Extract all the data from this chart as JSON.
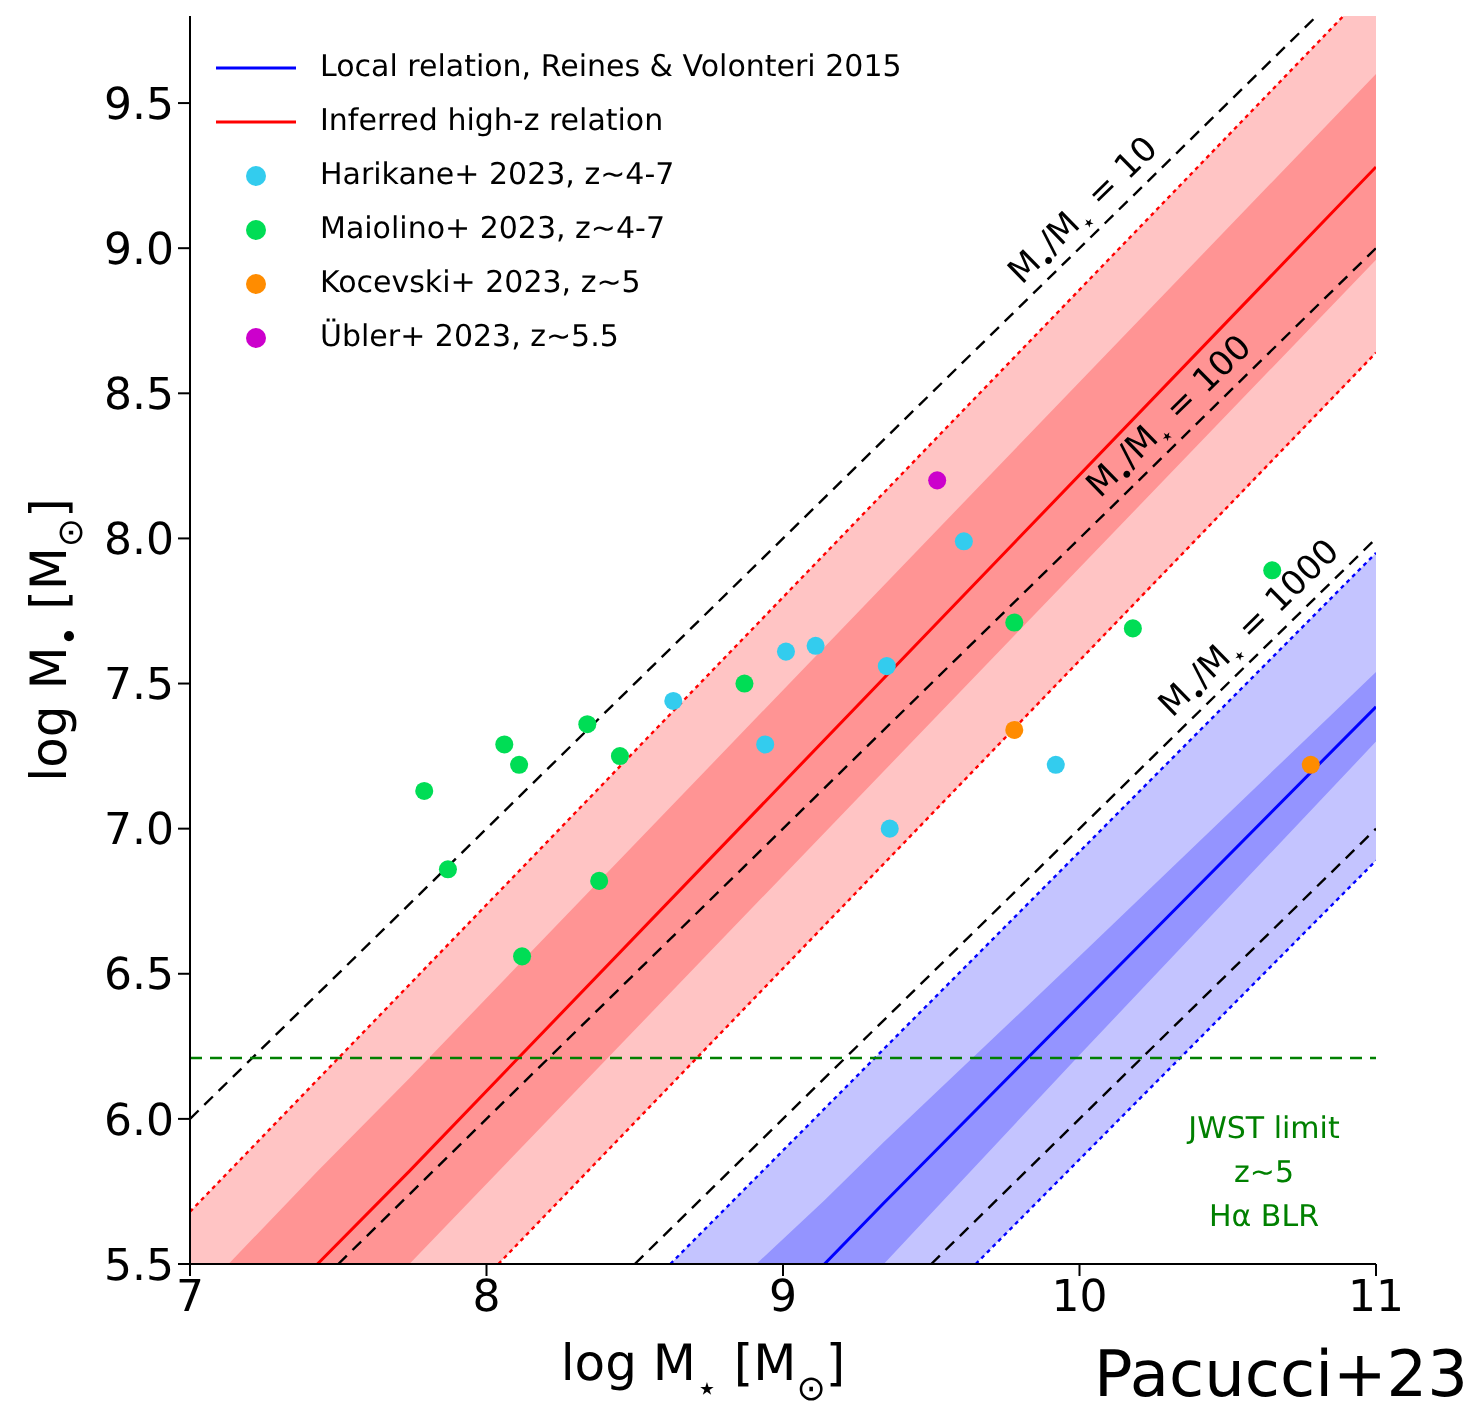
{
  "chart_data": {
    "type": "scatter",
    "xlabel": "log M$_{⋆}$ [M$_{⊙}$]",
    "ylabel": "log M$_{•}$ [M$_{⊙}$]",
    "xlim": [
      7,
      11
    ],
    "ylim": [
      5.5,
      9.8
    ],
    "xticks": [
      7,
      8,
      9,
      10,
      11
    ],
    "yticks": [
      5.5,
      {
        "value": 6,
        "label": "6.0"
      },
      6.5,
      {
        "value": 7,
        "label": "7.0"
      },
      7.5,
      {
        "value": 8,
        "label": "8.0"
      },
      8.5,
      {
        "value": 9,
        "label": "9.0"
      },
      9.5
    ],
    "grid": false,
    "legend": "top left",
    "series": [
      {
        "type": "line",
        "color": "#0000ff",
        "line_style": "dotted",
        "marker": "none",
        "x": [
          8.62,
          9.65,
          11
        ],
        "values": [
          5.5,
          6.56,
          7.95
        ],
        "lower": [
          5.5,
          5.5,
          6.89
        ],
        "upper": [
          5.5,
          6.56,
          7.95
        ]
      },
      {
        "type": "line",
        "color": "#0000ff",
        "line_style": "dotted",
        "marker": "none",
        "x": [
          9.65,
          11
        ],
        "values": [
          5.5,
          6.89
        ]
      },
      {
        "type": "line",
        "name": "Local relation, Reines & Volonteri 2015",
        "color": "#0000ff",
        "line_style": "solid",
        "marker": "none",
        "x": [
          8.91,
          9.14,
          9.34,
          10,
          11
        ],
        "values": [
          null,
          5.5,
          5.71,
          6.39,
          7.42
        ],
        "lower": [
          5.5,
          5.5,
          5.5,
          6.22,
          7.3
        ],
        "upper": [
          5.5,
          5.72,
          5.92,
          6.56,
          7.54
        ]
      },
      {
        "type": "line",
        "color": "#ff0000",
        "line_style": "dotted",
        "marker": "none",
        "x": [
          7,
          8.04,
          10.89,
          11
        ],
        "values": [
          5.68,
          6.78,
          9.8,
          null
        ],
        "lower": [
          5.5,
          5.5,
          8.52,
          8.64
        ],
        "upper": [
          5.68,
          6.78,
          9.8,
          9.8
        ]
      },
      {
        "type": "line",
        "color": "#ff0000",
        "line_style": "dotted",
        "marker": "none",
        "x": [
          8.04,
          11
        ],
        "values": [
          5.5,
          8.64
        ]
      },
      {
        "type": "line",
        "name": "Inferred high-z relation",
        "color": "#ff0000",
        "line_style": "solid",
        "marker": "none",
        "x": [
          7.13,
          7.43,
          7.74,
          11
        ],
        "values": [
          null,
          5.5,
          5.82,
          9.28
        ],
        "lower": [
          5.5,
          5.5,
          5.5,
          8.96
        ],
        "upper": [
          5.5,
          5.82,
          6.14,
          9.6
        ]
      },
      {
        "type": "line",
        "color": "#000000",
        "line_style": "dashed",
        "marker": "none",
        "x": [
          7,
          10.8
        ],
        "values": [
          6.0,
          9.8
        ]
      },
      {
        "type": "line",
        "color": "#000000",
        "line_style": "dashed",
        "marker": "none",
        "x": [
          7.5,
          11
        ],
        "values": [
          5.5,
          9.0
        ]
      },
      {
        "type": "line",
        "color": "#000000",
        "line_style": "dashed",
        "marker": "none",
        "x": [
          8.5,
          11
        ],
        "values": [
          5.5,
          8.0
        ]
      },
      {
        "type": "line",
        "color": "#000000",
        "line_style": "dashed",
        "marker": "none",
        "x": [
          9.5,
          11
        ],
        "values": [
          5.5,
          7.0
        ]
      },
      {
        "name": "Harikane+ 2023, z~4-7",
        "color": "#33ccee",
        "marker": "circle",
        "x": [
          8.63,
          8.94,
          9.01,
          9.11,
          9.35,
          9.36,
          9.61,
          9.92
        ],
        "values": [
          7.44,
          7.29,
          7.61,
          7.63,
          7.56,
          7.0,
          7.99,
          7.22
        ]
      },
      {
        "name": "Maiolino+ 2023, z~4-7",
        "color": "#00dd55",
        "marker": "circle",
        "x": [
          7.79,
          7.87,
          8.06,
          8.11,
          8.12,
          8.34,
          8.45,
          8.38,
          8.87,
          9.78,
          10.18,
          10.65
        ],
        "values": [
          7.13,
          6.86,
          7.29,
          7.22,
          6.56,
          7.36,
          7.25,
          6.82,
          7.5,
          7.71,
          7.69,
          7.89
        ]
      },
      {
        "name": "Kocevski+ 2023, z~5",
        "color": "#ff8c00",
        "marker": "circle",
        "x": [
          9.78,
          10.78
        ],
        "values": [
          7.34,
          7.22
        ]
      },
      {
        "name": "Übler+ 2023, z~5.5",
        "color": "#cc00cc",
        "marker": "circle",
        "x": [
          9.52
        ],
        "values": [
          8.2
        ]
      }
    ],
    "ref_lines": [
      {
        "axis": "y",
        "value": 6.21,
        "label": "JWST limit\nz~5\nHα BLR",
        "color": "#008000",
        "line_style": "dashed"
      }
    ],
    "annotations": [
      {
        "text": "M$_{•}$/M$_{⋆}$ = 10",
        "x": 10.07,
        "y": 9.07
      },
      {
        "text": "M$_{•}$/M$_{⋆}$ = 100",
        "x": 10.36,
        "y": 8.36
      },
      {
        "text": "M$_{•}$/M$_{⋆}$ = 1000",
        "x": 10.63,
        "y": 7.63
      },
      "Pacucci+23"
    ]
  }
}
